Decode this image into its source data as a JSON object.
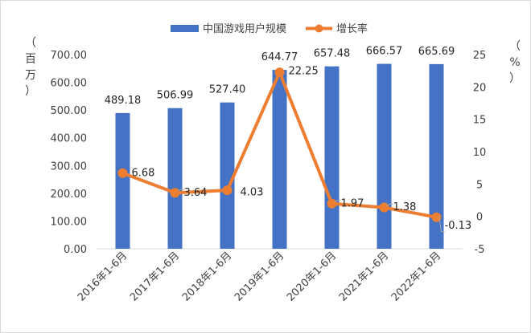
{
  "chart_data": {
    "type": "bar",
    "categories": [
      "2016年1-6月",
      "2017年1-6月",
      "2018年1-6月",
      "2019年1-6月",
      "2020年1-6月",
      "2021年1-6月",
      "2022年1-6月"
    ],
    "series": [
      {
        "name": "中国游戏用户规模",
        "type": "bar",
        "axis": "left",
        "color": "#4472c4",
        "values": [
          489.18,
          506.99,
          527.4,
          644.77,
          657.48,
          666.57,
          665.69
        ],
        "labels": [
          "489.18",
          "506.99",
          "527.40",
          "644.77",
          "657.48",
          "666.57",
          "665.69"
        ]
      },
      {
        "name": "增长率",
        "type": "line",
        "axis": "right",
        "color": "#ed7d31",
        "values": [
          6.68,
          3.64,
          4.03,
          22.25,
          1.97,
          1.38,
          -0.13
        ],
        "labels": [
          "6.68",
          "3.64",
          "4.03",
          "22.25",
          "1.97",
          "1.38",
          "-0.13"
        ]
      }
    ],
    "y_left": {
      "label_chars": [
        "（",
        "百",
        "万",
        "）"
      ],
      "range": [
        0,
        700
      ],
      "ticks": [
        "0.00",
        "100.00",
        "200.00",
        "300.00",
        "400.00",
        "500.00",
        "600.00",
        "700.00"
      ]
    },
    "y_right": {
      "label_chars": [
        "（",
        "%",
        "）"
      ],
      "range": [
        -5,
        25
      ],
      "ticks": [
        "-5",
        "0",
        "5",
        "10",
        "15",
        "20",
        "25"
      ]
    },
    "legend_position": "top",
    "grid": false
  }
}
